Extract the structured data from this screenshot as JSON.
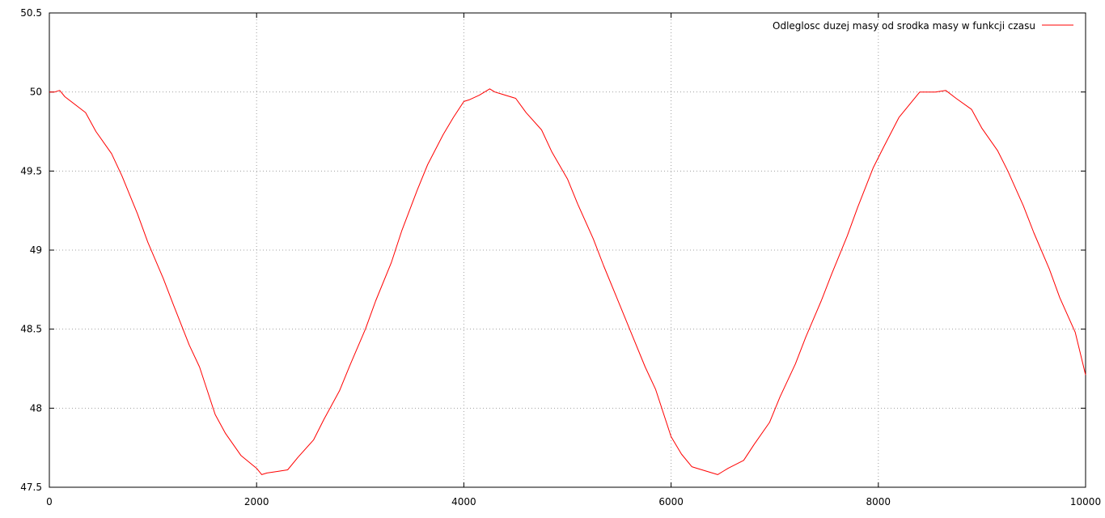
{
  "chart_data": {
    "type": "line",
    "title": "",
    "xlabel": "",
    "ylabel": "",
    "xlim": [
      0,
      10000
    ],
    "ylim": [
      47.5,
      50.5
    ],
    "grid": true,
    "legend_position": "top-right",
    "x_ticks": [
      0,
      2000,
      4000,
      6000,
      8000,
      10000
    ],
    "y_ticks": [
      47.5,
      48,
      48.5,
      49,
      49.5,
      50,
      50.5
    ],
    "x_tick_labels": [
      "0",
      "2000",
      "4000",
      "6000",
      "8000",
      "10000"
    ],
    "y_tick_labels": [
      "47.5",
      "48",
      "48.5",
      "49",
      "49.5",
      "50",
      "50.5"
    ],
    "series": [
      {
        "name": "Odleglosc duzej masy od srodka masy w funkcji czasu",
        "color": "#ff0000",
        "x": [
          0,
          50,
          100,
          150,
          350,
          450,
          600,
          700,
          850,
          950,
          1100,
          1200,
          1350,
          1450,
          1600,
          1700,
          1850,
          2000,
          2050,
          2100,
          2200,
          2300,
          2400,
          2550,
          2650,
          2800,
          2900,
          3050,
          3150,
          3300,
          3400,
          3550,
          3650,
          3800,
          3900,
          4000,
          4050,
          4150,
          4250,
          4300,
          4350,
          4500,
          4600,
          4750,
          4850,
          5000,
          5100,
          5250,
          5350,
          5500,
          5600,
          5750,
          5850,
          6000,
          6100,
          6200,
          6250,
          6350,
          6450,
          6500,
          6550,
          6700,
          6800,
          6950,
          7050,
          7200,
          7300,
          7450,
          7550,
          7700,
          7800,
          7950,
          8050,
          8200,
          8300,
          8400,
          8500,
          8550,
          8650,
          8750,
          8900,
          9000,
          9150,
          9250,
          9400,
          9500,
          9650,
          9750,
          9900,
          10000
        ],
        "y": [
          50.0,
          50.0,
          50.01,
          49.97,
          49.87,
          49.75,
          49.61,
          49.47,
          49.23,
          49.05,
          48.82,
          48.65,
          48.4,
          48.26,
          47.96,
          47.84,
          47.7,
          47.62,
          47.58,
          47.59,
          47.6,
          47.61,
          47.69,
          47.8,
          47.93,
          48.11,
          48.27,
          48.5,
          48.68,
          48.92,
          49.12,
          49.38,
          49.54,
          49.73,
          49.84,
          49.94,
          49.95,
          49.98,
          50.02,
          50.0,
          49.99,
          49.96,
          49.87,
          49.76,
          49.62,
          49.45,
          49.29,
          49.07,
          48.9,
          48.66,
          48.5,
          48.26,
          48.12,
          47.82,
          47.71,
          47.63,
          47.62,
          47.6,
          47.58,
          47.6,
          47.62,
          47.67,
          47.77,
          47.91,
          48.07,
          48.28,
          48.45,
          48.68,
          48.85,
          49.09,
          49.27,
          49.52,
          49.65,
          49.84,
          49.92,
          50.0,
          50.0,
          50.0,
          50.01,
          49.96,
          49.89,
          49.77,
          49.63,
          49.5,
          49.28,
          49.11,
          48.88,
          48.7,
          48.48,
          48.21
        ]
      }
    ]
  }
}
